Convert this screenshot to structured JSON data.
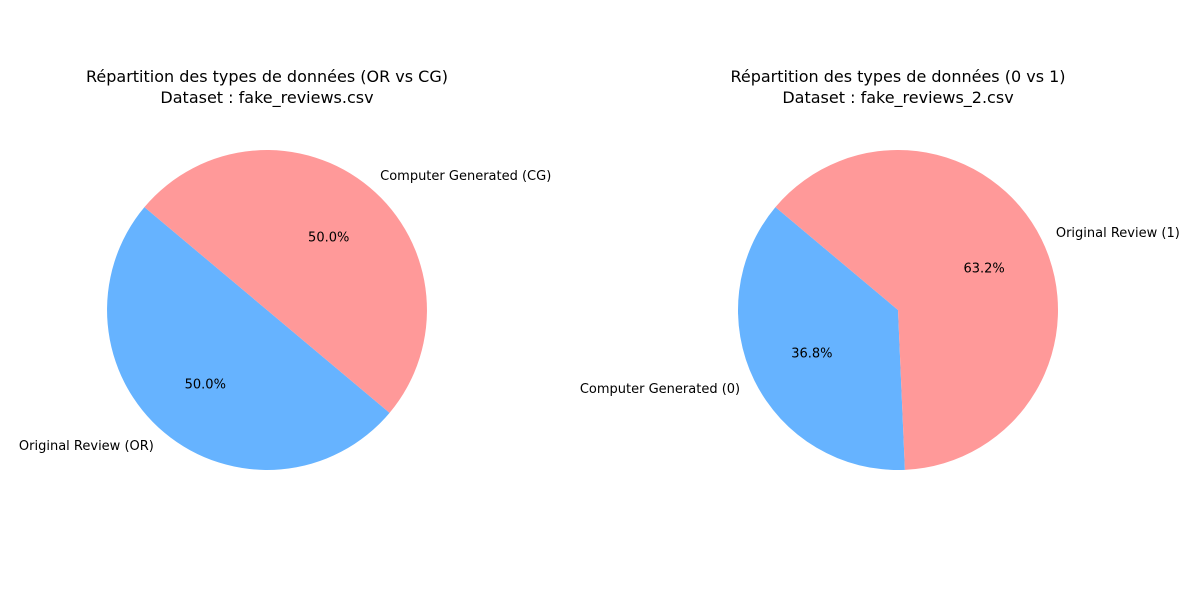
{
  "chart_data": [
    {
      "type": "pie",
      "title": "Répartition des types de données (OR vs CG)",
      "subtitle": "Dataset : fake_reviews.csv",
      "labels": [
        "Original Review (OR)",
        "Computer Generated (CG)"
      ],
      "values": [
        50.0,
        50.0
      ],
      "autopct": [
        "50.0%",
        "50.0%"
      ],
      "colors": [
        "#66b3ff",
        "#ff9999"
      ],
      "start_angle_deg": 140
    },
    {
      "type": "pie",
      "title": "Répartition des types de données (0 vs 1)",
      "subtitle": "Dataset : fake_reviews_2.csv",
      "labels": [
        "Computer Generated (0)",
        "Original Review (1)"
      ],
      "values": [
        36.8,
        63.2
      ],
      "autopct": [
        "36.8%",
        "63.2%"
      ],
      "colors": [
        "#66b3ff",
        "#ff9999"
      ],
      "start_angle_deg": 140
    }
  ]
}
